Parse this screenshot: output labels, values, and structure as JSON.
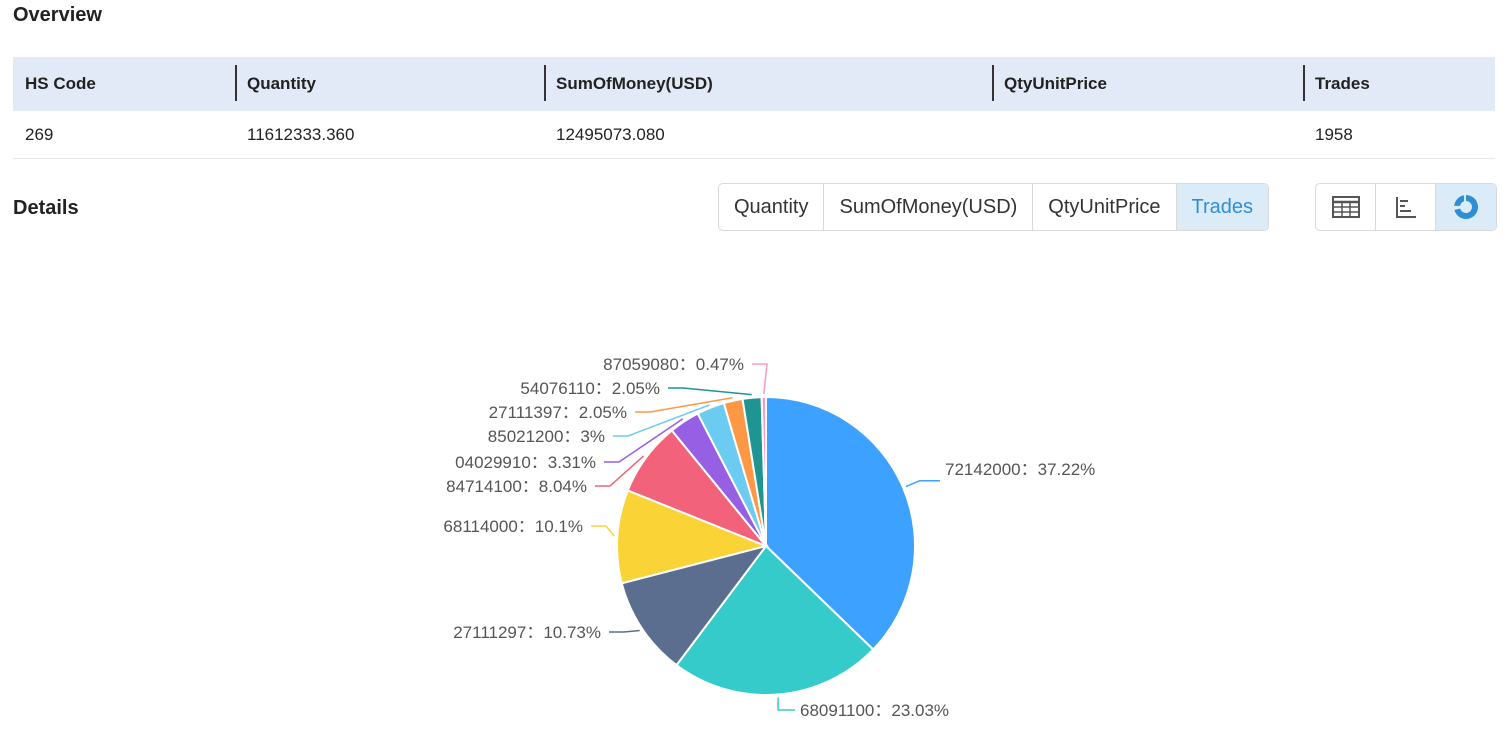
{
  "overview": {
    "title": "Overview",
    "headers": [
      "HS Code",
      "Quantity",
      "SumOfMoney(USD)",
      "QtyUnitPrice",
      "Trades"
    ],
    "row": [
      "269",
      "11612333.360",
      "12495073.080",
      "",
      "1958"
    ]
  },
  "details": {
    "title": "Details",
    "metric_tabs": [
      "Quantity",
      "SumOfMoney(USD)",
      "QtyUnitPrice",
      "Trades"
    ],
    "active_metric": "Trades",
    "view_icons": [
      "table-view-icon",
      "bar-chart-view-icon",
      "pie-chart-view-icon"
    ],
    "active_view": "pie-chart-view-icon"
  },
  "chart_data": {
    "type": "pie",
    "label_separator": "：",
    "slices": [
      {
        "label": "72142000",
        "value": 37.22,
        "pct_text": "37.22%",
        "color": "#3da1ff"
      },
      {
        "label": "68091100",
        "value": 23.03,
        "pct_text": "23.03%",
        "color": "#36cbcb"
      },
      {
        "label": "27111297",
        "value": 10.73,
        "pct_text": "10.73%",
        "color": "#5b6e8f"
      },
      {
        "label": "68114000",
        "value": 10.1,
        "pct_text": "10.1%",
        "color": "#fad337"
      },
      {
        "label": "84714100",
        "value": 8.04,
        "pct_text": "8.04%",
        "color": "#f2637b"
      },
      {
        "label": "04029910",
        "value": 3.31,
        "pct_text": "3.31%",
        "color": "#975fe4"
      },
      {
        "label": "85021200",
        "value": 3.0,
        "pct_text": "3%",
        "color": "#6bcbf1"
      },
      {
        "label": "27111397",
        "value": 2.05,
        "pct_text": "2.05%",
        "color": "#ff9845"
      },
      {
        "label": "54076110",
        "value": 2.05,
        "pct_text": "2.05%",
        "color": "#1e9493"
      },
      {
        "label": "87059080",
        "value": 0.47,
        "pct_text": "0.47%",
        "color": "#ff99c3"
      }
    ]
  }
}
